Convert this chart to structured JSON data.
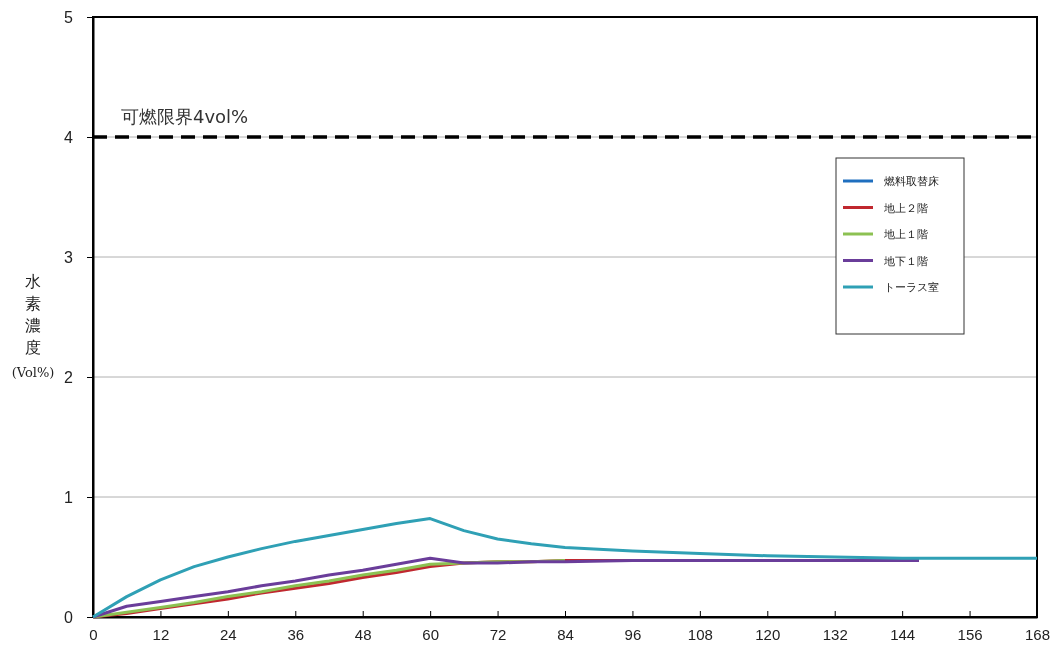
{
  "chart_data": {
    "type": "line",
    "ylabel": "水素濃度(Vol%)",
    "x": [
      0,
      6,
      12,
      18,
      24,
      30,
      36,
      42,
      48,
      54,
      60,
      66,
      72,
      78,
      84,
      96,
      108,
      120,
      132,
      144,
      147,
      156,
      168
    ],
    "xlim": [
      0,
      168
    ],
    "xticks": [
      0,
      12,
      24,
      36,
      48,
      60,
      72,
      84,
      96,
      108,
      120,
      132,
      144,
      156,
      168
    ],
    "ylim": [
      0,
      5
    ],
    "yticks": [
      0,
      1,
      2,
      3,
      4,
      5
    ],
    "grid": "y",
    "legend": "top right",
    "line_style": "solid",
    "marker": "none",
    "ref_lines": [
      {
        "axis": "y",
        "value": 4,
        "label": "可燃限界4vol%",
        "color": "#000000",
        "line_style": "dashed"
      }
    ],
    "series": [
      {
        "name": "燃料取替床",
        "color": "#1f6fbf",
        "values": [
          null,
          null,
          null,
          null,
          null,
          null,
          null,
          null,
          null,
          null,
          null,
          null,
          null,
          null,
          null,
          null,
          null,
          null,
          null,
          null,
          null,
          null,
          null
        ]
      },
      {
        "name": "地上２階",
        "color": "#c0282f",
        "values": [
          0,
          0.03,
          0.07,
          0.11,
          0.15,
          0.2,
          0.24,
          0.28,
          0.33,
          0.37,
          0.42,
          0.45,
          0.46,
          0.46,
          0.47,
          0.47,
          0.47,
          null,
          null,
          null,
          null,
          null,
          null
        ]
      },
      {
        "name": "地上１階",
        "color": "#8cc152",
        "values": [
          0,
          0.04,
          0.08,
          0.12,
          0.17,
          0.21,
          0.26,
          0.3,
          0.35,
          0.39,
          0.44,
          0.45,
          0.46,
          0.46,
          0.47,
          null,
          null,
          null,
          null,
          null,
          null,
          null,
          null
        ]
      },
      {
        "name": "地下１階",
        "color": "#6a3d9a",
        "values": [
          0,
          0.09,
          0.13,
          0.17,
          0.21,
          0.26,
          0.3,
          0.35,
          0.39,
          0.44,
          0.49,
          0.45,
          0.45,
          0.46,
          0.46,
          0.47,
          0.47,
          0.47,
          0.47,
          0.47,
          0.47,
          null,
          null
        ]
      },
      {
        "name": "トーラス室",
        "color": "#2fa0b5",
        "values": [
          0,
          0.17,
          0.31,
          0.42,
          0.5,
          0.57,
          0.63,
          0.68,
          0.73,
          0.78,
          0.82,
          0.72,
          0.65,
          0.61,
          0.58,
          0.55,
          0.53,
          0.51,
          0.5,
          0.49,
          0.49,
          0.49,
          0.49
        ]
      }
    ]
  }
}
